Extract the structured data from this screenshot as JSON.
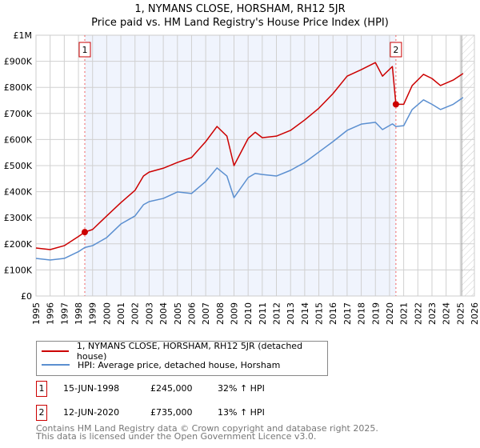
{
  "chart_data": {
    "type": "line",
    "title": "1, NYMANS CLOSE, HORSHAM, RH12 5JR",
    "subtitle": "Price paid vs. HM Land Registry's House Price Index (HPI)",
    "xlim": [
      1995,
      2026
    ],
    "ylim": [
      0,
      1000000
    ],
    "y_ticks": [
      {
        "v": 0,
        "label": "£0"
      },
      {
        "v": 100000,
        "label": "£100K"
      },
      {
        "v": 200000,
        "label": "£200K"
      },
      {
        "v": 300000,
        "label": "£300K"
      },
      {
        "v": 400000,
        "label": "£400K"
      },
      {
        "v": 500000,
        "label": "£500K"
      },
      {
        "v": 600000,
        "label": "£600K"
      },
      {
        "v": 700000,
        "label": "£700K"
      },
      {
        "v": 800000,
        "label": "£800K"
      },
      {
        "v": 900000,
        "label": "£900K"
      },
      {
        "v": 1000000,
        "label": "£1M"
      }
    ],
    "x_ticks": [
      "1995",
      "1996",
      "1997",
      "1998",
      "1999",
      "2000",
      "2001",
      "2002",
      "2003",
      "2004",
      "2005",
      "2006",
      "2007",
      "2008",
      "2009",
      "2010",
      "2011",
      "2012",
      "2013",
      "2014",
      "2015",
      "2016",
      "2017",
      "2018",
      "2019",
      "2020",
      "2021",
      "2022",
      "2023",
      "2024",
      "2025",
      "2026"
    ],
    "grid": true,
    "series": [
      {
        "name": "1, NYMANS CLOSE, HORSHAM, RH12 5JR (detached house)",
        "color": "#cc0000",
        "x": [
          1995,
          1996,
          1997,
          1998,
          1998.45,
          1999,
          2000,
          2001,
          2002,
          2002.6,
          2003,
          2004,
          2005,
          2006,
          2007,
          2007.8,
          2008.5,
          2009,
          2010,
          2010.5,
          2011,
          2012,
          2013,
          2014,
          2015,
          2016,
          2017,
          2018,
          2019,
          2019.5,
          2020.2,
          2020.45,
          2021,
          2021.6,
          2022.4,
          2023,
          2023.6,
          2024.5,
          2025.2
        ],
        "y": [
          184000,
          178000,
          193000,
          228000,
          245000,
          255000,
          307000,
          358000,
          405000,
          460000,
          475000,
          490000,
          512000,
          531000,
          592000,
          650000,
          613000,
          500000,
          604000,
          628000,
          607000,
          613000,
          635000,
          675000,
          720000,
          776000,
          843000,
          868000,
          895000,
          843000,
          880000,
          735000,
          735000,
          807000,
          850000,
          834000,
          807000,
          828000,
          853000
        ]
      },
      {
        "name": "HPI: Average price, detached house, Horsham",
        "color": "#5b8fd0",
        "x": [
          1995,
          1996,
          1997,
          1998,
          1998.45,
          1999,
          2000,
          2001,
          2002,
          2002.6,
          2003,
          2004,
          2005,
          2006,
          2007,
          2007.8,
          2008.5,
          2009,
          2010,
          2010.5,
          2011,
          2012,
          2013,
          2014,
          2015,
          2016,
          2017,
          2018,
          2019,
          2019.5,
          2020.2,
          2020.45,
          2021,
          2021.6,
          2022.4,
          2023,
          2023.6,
          2024.5,
          2025.2
        ],
        "y": [
          144000,
          138000,
          144000,
          170000,
          186000,
          193000,
          224000,
          276000,
          307000,
          350000,
          362000,
          374000,
          399000,
          393000,
          439000,
          491000,
          460000,
          377000,
          454000,
          470000,
          466000,
          460000,
          482000,
          512000,
          552000,
          592000,
          635000,
          659000,
          666000,
          638000,
          660000,
          650000,
          653000,
          715000,
          752000,
          735000,
          715000,
          735000,
          761000
        ]
      }
    ],
    "annotations": [
      {
        "label": "1",
        "x": 1998.45,
        "y": 245000
      },
      {
        "label": "2",
        "x": 2020.45,
        "y": 735000
      }
    ],
    "shaded_range": [
      1998.45,
      2020.45
    ],
    "forecast_hatch_from": 2025.1,
    "legend_position": "below"
  },
  "transactions": [
    {
      "num": "1",
      "date": "15-JUN-1998",
      "price": "£245,000",
      "hpi": "32% ↑ HPI"
    },
    {
      "num": "2",
      "date": "12-JUN-2020",
      "price": "£735,000",
      "hpi": "13% ↑ HPI"
    }
  ],
  "footer": {
    "line1": "Contains HM Land Registry data © Crown copyright and database right 2025.",
    "line2": "This data is licensed under the Open Government Licence v3.0."
  }
}
